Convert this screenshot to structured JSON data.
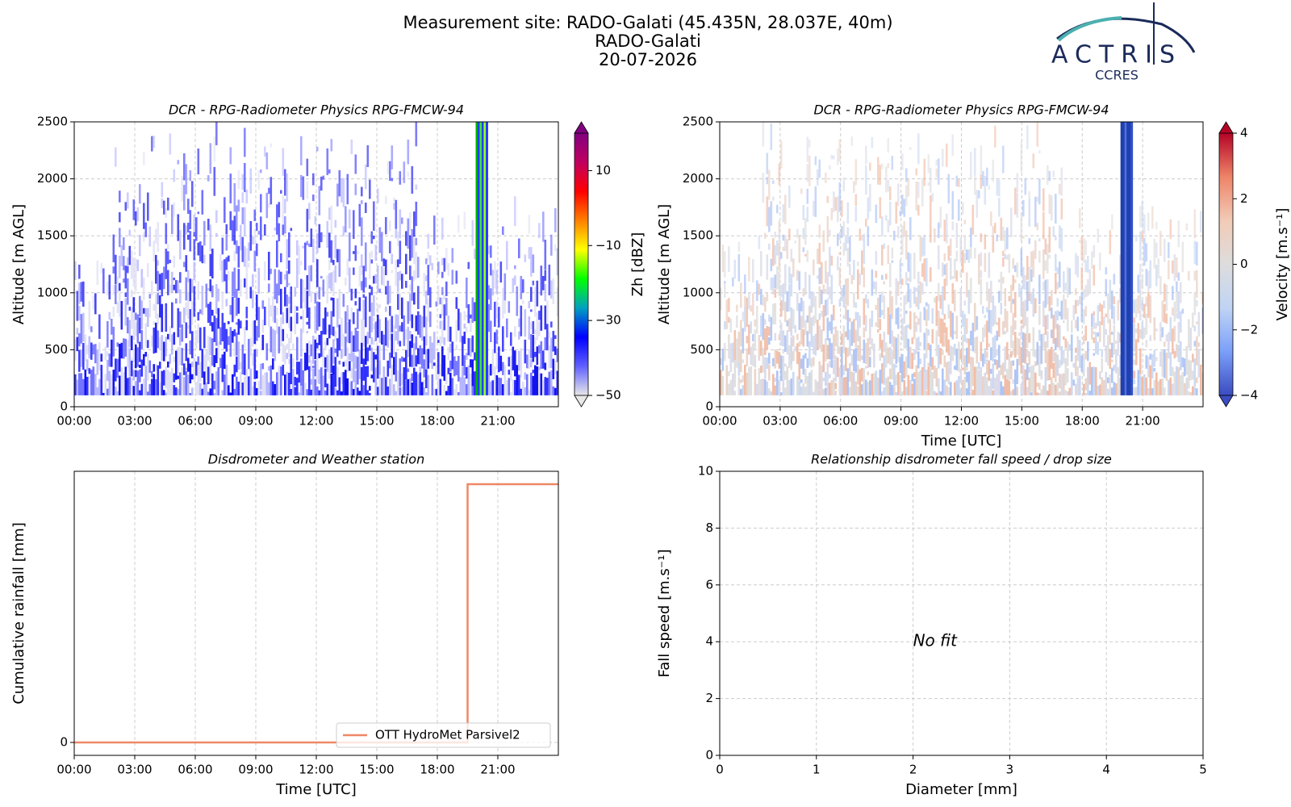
{
  "header": {
    "title_lines": [
      "Measurement site: RADO-Galati (45.435N, 28.037E, 40m)",
      "RADO-Galati",
      "20-07-2026"
    ],
    "logo": {
      "name": "ACTRIS",
      "sub": "CCRES"
    }
  },
  "chart_data": [
    {
      "type": "heatmap",
      "title": "DCR - RPG-Radiometer Physics RPG-FMCW-94",
      "y_label": "Altitude [m AGL]",
      "xlim": [
        0,
        24
      ],
      "xticks": [
        {
          "value": 0,
          "label": "00:00"
        },
        {
          "value": 3,
          "label": "03:00"
        },
        {
          "value": 6,
          "label": "06:00"
        },
        {
          "value": 9,
          "label": "09:00"
        },
        {
          "value": 12,
          "label": "12:00"
        },
        {
          "value": 15,
          "label": "15:00"
        },
        {
          "value": 18,
          "label": "18:00"
        },
        {
          "value": 21,
          "label": "21:00"
        }
      ],
      "ylim": [
        0,
        2500
      ],
      "yticks": [
        0,
        500,
        1000,
        1500,
        2000,
        2500
      ],
      "grid": true,
      "colorbar": {
        "label": "Zh [dBZ]",
        "lim": [
          -50,
          20
        ],
        "ticks": [
          {
            "value": -50,
            "label": "−50"
          },
          {
            "value": -30,
            "label": "−30"
          },
          {
            "value": -10,
            "label": "−10"
          },
          10
        ],
        "colors": [
          "#e8e8e8",
          "#6060ff",
          "#0000ff",
          "#00a0c0",
          "#00ff00",
          "#ffff00",
          "#ff8000",
          "#ff0000",
          "#c00060",
          "#800080"
        ]
      }
    },
    {
      "type": "heatmap",
      "title": "DCR - RPG-Radiometer Physics RPG-FMCW-94",
      "y_label": "Altitude [m AGL]",
      "x_label": "Time [UTC]",
      "xlim": [
        0,
        24
      ],
      "xticks": [
        {
          "value": 0,
          "label": "00:00"
        },
        {
          "value": 3,
          "label": "03:00"
        },
        {
          "value": 6,
          "label": "06:00"
        },
        {
          "value": 9,
          "label": "09:00"
        },
        {
          "value": 12,
          "label": "12:00"
        },
        {
          "value": 15,
          "label": "15:00"
        },
        {
          "value": 18,
          "label": "18:00"
        },
        {
          "value": 21,
          "label": "21:00"
        }
      ],
      "ylim": [
        0,
        2500
      ],
      "yticks": [
        0,
        500,
        1000,
        1500,
        2000,
        2500
      ],
      "grid": true,
      "colorbar": {
        "label": "Velocity [m.s⁻¹]",
        "lim": [
          -4,
          4
        ],
        "ticks": [
          {
            "value": -4,
            "label": "−4"
          },
          {
            "value": -2,
            "label": "−2"
          },
          0,
          2,
          4
        ],
        "colors": [
          "#3b4cc0",
          "#7b9ff9",
          "#c0d4f5",
          "#dddddd",
          "#f2cbb7",
          "#ee8468",
          "#b40426"
        ]
      }
    },
    {
      "type": "line",
      "title": "Disdrometer and Weather station",
      "y_label": "Cumulative rainfall [mm]",
      "x_label": "Time [UTC]",
      "xlim": [
        0,
        24
      ],
      "xticks": [
        {
          "value": 0,
          "label": "00:00"
        },
        {
          "value": 3,
          "label": "03:00"
        },
        {
          "value": 6,
          "label": "06:00"
        },
        {
          "value": 9,
          "label": "09:00"
        },
        {
          "value": 12,
          "label": "12:00"
        },
        {
          "value": 15,
          "label": "15:00"
        },
        {
          "value": 18,
          "label": "18:00"
        },
        {
          "value": 21,
          "label": "21:00"
        }
      ],
      "ylim": [
        -0.05,
        1.05
      ],
      "yticks": [
        0
      ],
      "grid": true,
      "legend": "lower right",
      "series": [
        {
          "name": "OTT HydroMet Parsivel2",
          "color": "#ee8866",
          "x": [
            0,
            19.5,
            19.5,
            24
          ],
          "values": [
            0,
            0,
            1,
            1
          ]
        }
      ]
    },
    {
      "type": "scatter",
      "title": "Relationship disdrometer fall speed / drop size",
      "y_label": "Fall speed [m.s⁻¹]",
      "x_label": "Diameter [mm]",
      "xlim": [
        0,
        5
      ],
      "xticks": [
        0,
        1,
        2,
        3,
        4,
        5
      ],
      "ylim": [
        0,
        10
      ],
      "yticks": [
        0,
        2,
        4,
        6,
        8,
        10
      ],
      "grid": true,
      "annotation": "No fit",
      "series": []
    }
  ]
}
